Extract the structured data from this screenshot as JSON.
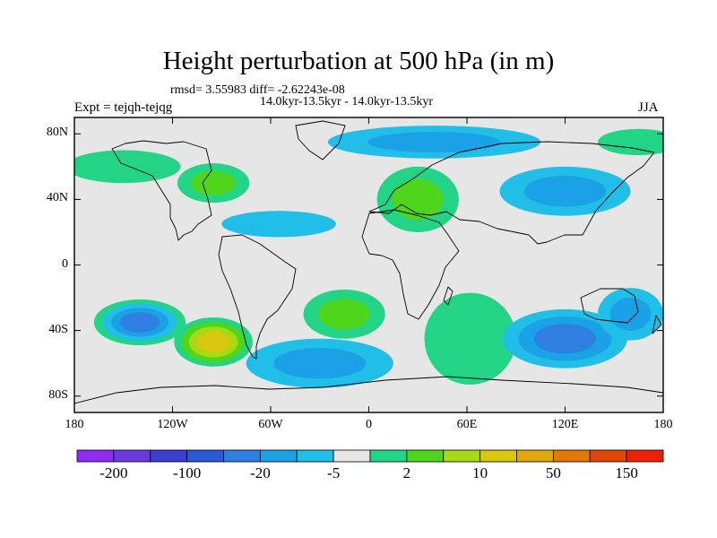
{
  "title": "Height perturbation at 500 hPa (in m)",
  "stats": "rmsd= 3.55983 diff= -2.62243e-08",
  "period": "14.0kyr-13.5kyr - 14.0kyr-13.5kyr",
  "experiment": "Expt = tejqh-tejqg",
  "season": "JJA",
  "map": {
    "lat_ticks": [
      {
        "value": 80,
        "label": "80N"
      },
      {
        "value": 40,
        "label": "40N"
      },
      {
        "value": 0,
        "label": "0"
      },
      {
        "value": -40,
        "label": "40S"
      },
      {
        "value": -80,
        "label": "80S"
      }
    ],
    "lon_ticks": [
      {
        "value": -180,
        "label": "180"
      },
      {
        "value": -120,
        "label": "120W"
      },
      {
        "value": -60,
        "label": "60W"
      },
      {
        "value": 0,
        "label": "0"
      },
      {
        "value": 60,
        "label": "60E"
      },
      {
        "value": 120,
        "label": "120E"
      },
      {
        "value": 180,
        "label": "180"
      }
    ],
    "lat_range": [
      -90,
      90
    ],
    "lon_range": [
      -180,
      180
    ],
    "background_color": "#e6e6e6",
    "anomalies": [
      {
        "lon": -140,
        "lat": -35,
        "rx": 28,
        "ry": 14,
        "levels": [
          1,
          -1,
          -2,
          -3
        ]
      },
      {
        "lon": -95,
        "lat": -47,
        "rx": 24,
        "ry": 15,
        "levels": [
          1,
          2,
          3,
          4
        ]
      },
      {
        "lon": -30,
        "lat": -60,
        "rx": 45,
        "ry": 15,
        "levels": [
          -1,
          -2
        ]
      },
      {
        "lon": -15,
        "lat": -30,
        "rx": 25,
        "ry": 15,
        "levels": [
          1,
          2
        ]
      },
      {
        "lon": 62,
        "lat": -45,
        "rx": 28,
        "ry": 28,
        "levels": [
          1
        ]
      },
      {
        "lon": 120,
        "lat": -45,
        "rx": 38,
        "ry": 18,
        "levels": [
          -1,
          -2,
          -3
        ]
      },
      {
        "lon": 160,
        "lat": -30,
        "rx": 20,
        "ry": 16,
        "levels": [
          -1,
          -2
        ]
      },
      {
        "lon": -150,
        "lat": 60,
        "rx": 35,
        "ry": 10,
        "levels": [
          1
        ]
      },
      {
        "lon": -95,
        "lat": 50,
        "rx": 22,
        "ry": 12,
        "levels": [
          1,
          2
        ]
      },
      {
        "lon": -55,
        "lat": 25,
        "rx": 35,
        "ry": 8,
        "levels": [
          -1
        ]
      },
      {
        "lon": 30,
        "lat": 40,
        "rx": 25,
        "ry": 20,
        "levels": [
          1,
          2
        ]
      },
      {
        "lon": 40,
        "lat": 75,
        "rx": 65,
        "ry": 10,
        "levels": [
          -1,
          -2
        ]
      },
      {
        "lon": 120,
        "lat": 45,
        "rx": 40,
        "ry": 15,
        "levels": [
          -1,
          -2
        ]
      },
      {
        "lon": 165,
        "lat": 75,
        "rx": 25,
        "ry": 8,
        "levels": [
          1
        ]
      }
    ]
  },
  "colorbar": {
    "colors": [
      "#8e2cf0",
      "#6a3bdc",
      "#3f3ed2",
      "#2a58d8",
      "#2f7fe0",
      "#1aa1e6",
      "#21bee8",
      "#e6e6e6",
      "#23d486",
      "#4fd61c",
      "#a6da14",
      "#d8c810",
      "#e0a80c",
      "#e27808",
      "#e24606",
      "#ec2208"
    ],
    "labels": [
      {
        "index": 1,
        "text": "-200"
      },
      {
        "index": 3,
        "text": "-100"
      },
      {
        "index": 5,
        "text": "-20"
      },
      {
        "index": 7,
        "text": "-5"
      },
      {
        "index": 9,
        "text": "2"
      },
      {
        "index": 11,
        "text": "10"
      },
      {
        "index": 13,
        "text": "50"
      },
      {
        "index": 15,
        "text": "150"
      }
    ]
  }
}
